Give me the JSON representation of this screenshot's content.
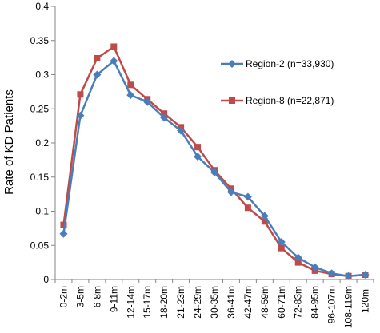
{
  "chart_data": {
    "type": "line",
    "title": "",
    "xlabel": "",
    "ylabel": "Rate of KD Patients",
    "ylim": [
      0,
      0.4
    ],
    "yticks": [
      "0",
      "0.05",
      "0.1",
      "0.15",
      "0.2",
      "0.25",
      "0.3",
      "0.35",
      "0.4"
    ],
    "grid": false,
    "legend": "right",
    "categories": [
      "0-2m",
      "3-5m",
      "6-8m",
      "9-11m",
      "12-14m",
      "15-17m",
      "18-20m",
      "21-23m",
      "24-29m",
      "30-35m",
      "36-41m",
      "42-47m",
      "48-59m",
      "60-71m",
      "72-83m",
      "84-95m",
      "96-107m",
      "108-119m",
      "120m-"
    ],
    "series": [
      {
        "name": "Region-2 (n=33,930)",
        "color": "#4a7ebb",
        "marker": "diamond",
        "values": [
          0.067,
          0.24,
          0.3,
          0.32,
          0.27,
          0.26,
          0.237,
          0.218,
          0.18,
          0.157,
          0.128,
          0.121,
          0.093,
          0.055,
          0.032,
          0.018,
          0.009,
          0.005,
          0.007
        ]
      },
      {
        "name": "Region-8 (n=22,871)",
        "color": "#be4b48",
        "marker": "square",
        "values": [
          0.08,
          0.271,
          0.324,
          0.341,
          0.285,
          0.264,
          0.243,
          0.223,
          0.194,
          0.16,
          0.133,
          0.105,
          0.085,
          0.046,
          0.025,
          0.013,
          0.008,
          0.005,
          0.007
        ]
      }
    ]
  }
}
